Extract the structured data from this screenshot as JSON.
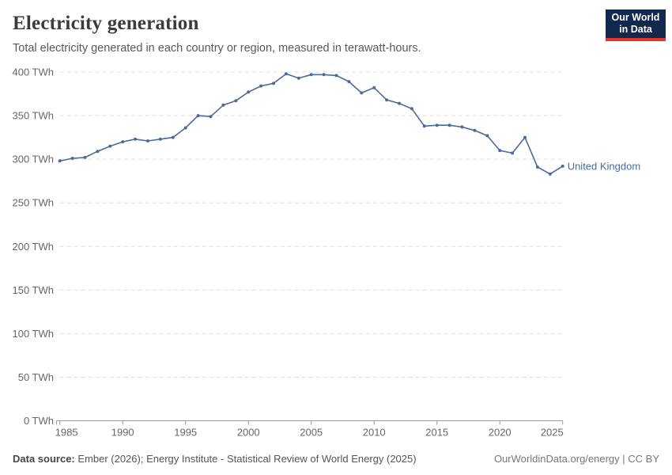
{
  "header": {
    "title": "Electricity generation",
    "subtitle": "Total electricity generated in each country or region, measured in terawatt-hours.",
    "logo": {
      "line1": "Our World",
      "line2": "in Data"
    }
  },
  "chart_data": {
    "type": "line",
    "title": "Electricity generation",
    "unit": "TWh",
    "xlim": [
      1985,
      2025
    ],
    "ylim": [
      0,
      400
    ],
    "grid": "horizontal-dashed",
    "legend_position": "end-of-line-label",
    "x_ticks": [
      1985,
      1990,
      1995,
      2000,
      2005,
      2010,
      2015,
      2020,
      2025
    ],
    "y_ticks": [
      {
        "value": 0,
        "label": "0 TWh"
      },
      {
        "value": 50,
        "label": "50 TWh"
      },
      {
        "value": 100,
        "label": "100 TWh"
      },
      {
        "value": 150,
        "label": "150 TWh"
      },
      {
        "value": 200,
        "label": "200 TWh"
      },
      {
        "value": 250,
        "label": "250 TWh"
      },
      {
        "value": 300,
        "label": "300 TWh"
      },
      {
        "value": 350,
        "label": "350 TWh"
      },
      {
        "value": 400,
        "label": "400 TWh"
      }
    ],
    "series": [
      {
        "name": "United Kingdom",
        "color": "#4C6A9C",
        "x": [
          1985,
          1986,
          1987,
          1988,
          1989,
          1990,
          1991,
          1992,
          1993,
          1994,
          1995,
          1996,
          1997,
          1998,
          1999,
          2000,
          2001,
          2002,
          2003,
          2004,
          2005,
          2006,
          2007,
          2008,
          2009,
          2010,
          2011,
          2012,
          2013,
          2014,
          2015,
          2016,
          2017,
          2018,
          2019,
          2020,
          2021,
          2022,
          2023,
          2024,
          2025
        ],
        "values": [
          298,
          301,
          302,
          309,
          315,
          320,
          323,
          321,
          323,
          325,
          336,
          350,
          349,
          362,
          367,
          377,
          384,
          387,
          398,
          393,
          397,
          397,
          396,
          389,
          376,
          382,
          368,
          364,
          358,
          338,
          339,
          339,
          337,
          333,
          327,
          310,
          307,
          325,
          291,
          283,
          292
        ]
      }
    ]
  },
  "footer": {
    "datasource_label": "Data source:",
    "datasource_text": " Ember (2026); Energy Institute - Statistical Review of World Energy (2025)",
    "rights": "OurWorldinData.org/energy | CC BY"
  },
  "colors": {
    "line": "#4C6A9C",
    "grid": "#dddddd",
    "axis": "#999999",
    "tick_text": "#666666",
    "logo_bg": "#12294d",
    "logo_red": "#e5332d"
  }
}
